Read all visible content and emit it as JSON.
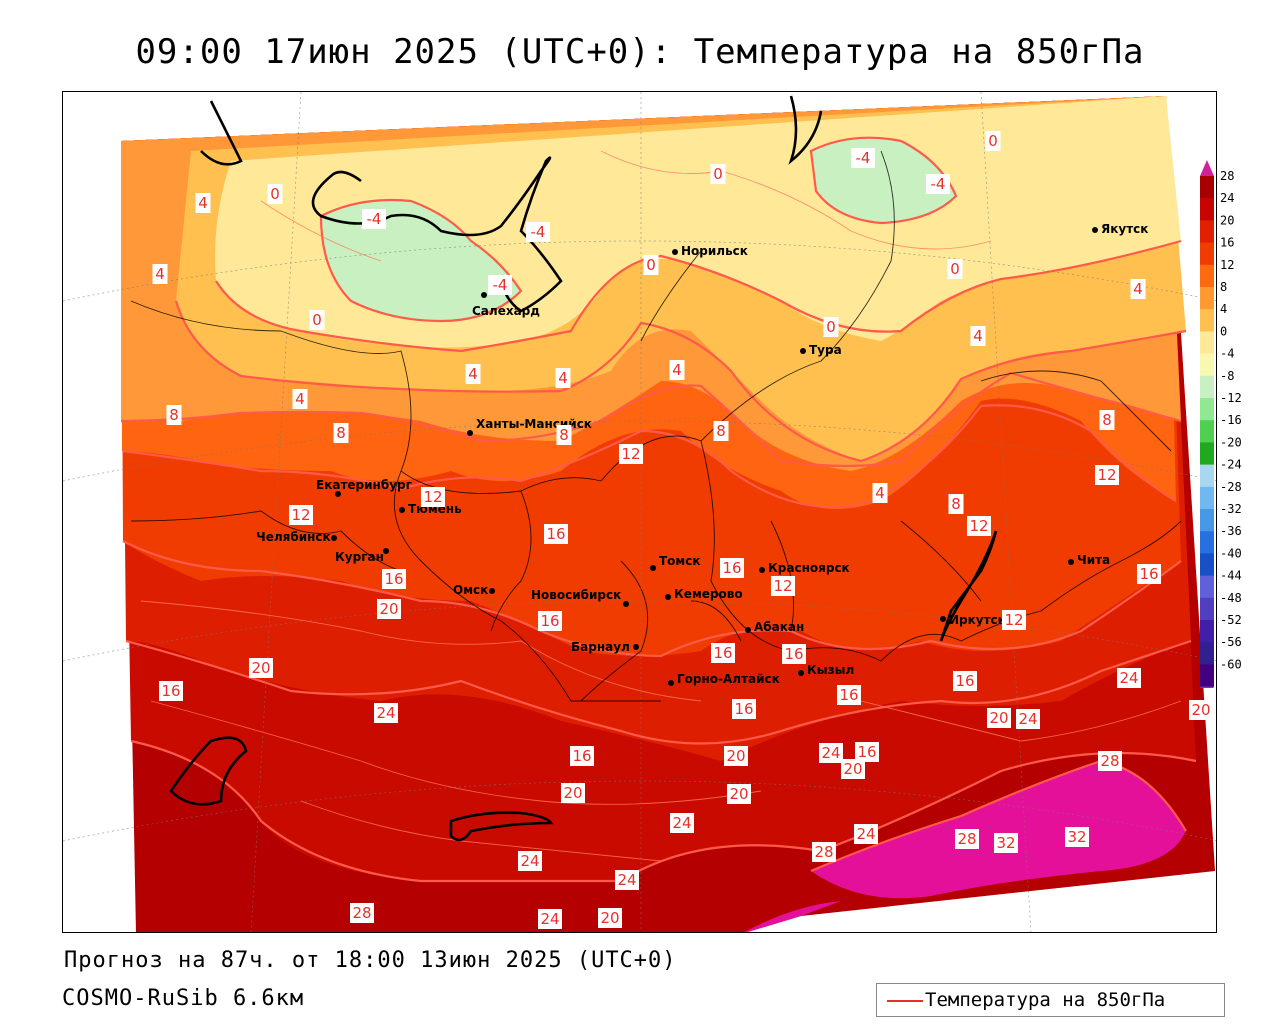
{
  "title": "09:00 17июн 2025 (UTC+0): Температура на 850гПа",
  "footer": {
    "forecast": "Прогноз на 87ч. от 18:00 13июн 2025 (UTC+0)",
    "model": "COSMO-RuSib 6.6км"
  },
  "legend": {
    "label": "Температура на 850гПа",
    "line_color": "#e8302a"
  },
  "colorbar": {
    "labels": [
      "28",
      "24",
      "20",
      "16",
      "12",
      "8",
      "4",
      "0",
      "-4",
      "-8",
      "-12",
      "-16",
      "-20",
      "-24",
      "-28",
      "-32",
      "-36",
      "-40",
      "-44",
      "-48",
      "-52",
      "-56",
      "-60"
    ],
    "colors": [
      "#a80000",
      "#c80400",
      "#e02000",
      "#f03c00",
      "#ff6a10",
      "#ff9a30",
      "#ffc050",
      "#ffe898",
      "#f8f8b0",
      "#c8f0c0",
      "#90e890",
      "#50d050",
      "#20a820",
      "#a8d8f0",
      "#70b8f0",
      "#4898e8",
      "#2870e0",
      "#1850c8",
      "#6060d8",
      "#5040c0",
      "#4020a8",
      "#302090",
      "#400080"
    ],
    "top_color": "#d0209a",
    "bottom_color": "#8030c0"
  },
  "cities": [
    {
      "name": "Норильск"
    },
    {
      "name": "Якутск"
    },
    {
      "name": "Салехард"
    },
    {
      "name": "Тура"
    },
    {
      "name": "Ханты-Мансийск"
    },
    {
      "name": "Екатеринбург"
    },
    {
      "name": "Тюмень"
    },
    {
      "name": "Челябинск"
    },
    {
      "name": "Курган"
    },
    {
      "name": "Омск"
    },
    {
      "name": "Новосибирск"
    },
    {
      "name": "Томск"
    },
    {
      "name": "Кемерово"
    },
    {
      "name": "Красноярск"
    },
    {
      "name": "Барнаул"
    },
    {
      "name": "Абакан"
    },
    {
      "name": "Горно-Алтайск"
    },
    {
      "name": "Кызыл"
    },
    {
      "name": "Иркутск"
    },
    {
      "name": "Чита"
    }
  ],
  "isotherm_labels": [
    "-4",
    "-4",
    "-4",
    "-4",
    "-4",
    "0",
    "0",
    "0",
    "0",
    "0",
    "0",
    "0",
    "4",
    "4",
    "4",
    "4",
    "4",
    "4",
    "4",
    "4",
    "4",
    "8",
    "8",
    "8",
    "8",
    "8",
    "8",
    "12",
    "12",
    "12",
    "12",
    "12",
    "12",
    "12",
    "16",
    "16",
    "16",
    "16",
    "16",
    "16",
    "16",
    "16",
    "16",
    "16",
    "16",
    "16",
    "16",
    "20",
    "20",
    "20",
    "20",
    "20",
    "20",
    "20",
    "20",
    "20",
    "24",
    "24",
    "24",
    "24",
    "24",
    "24",
    "24",
    "24",
    "24",
    "28",
    "28",
    "28",
    "28",
    "32",
    "32"
  ]
}
